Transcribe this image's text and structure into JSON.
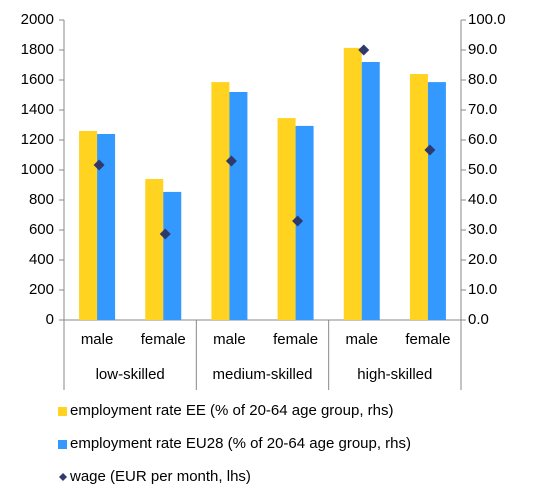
{
  "chart_data": {
    "type": "bar",
    "categories": [
      "male",
      "female",
      "male",
      "female",
      "male",
      "female"
    ],
    "groups": [
      "low-skilled",
      "medium-skilled",
      "high-skilled"
    ],
    "series": [
      {
        "name": "employment rate EE (% of 20-64 age group, rhs)",
        "color": "#ffd320",
        "axis": "y2",
        "values": [
          63,
          47,
          79.3,
          67.3,
          90.7,
          82
        ]
      },
      {
        "name": "employment rate EU28 (% of 20-64 age group, rhs)",
        "color": "#3399ff",
        "axis": "y2",
        "values": [
          62,
          42.7,
          76,
          64.7,
          86,
          79.3
        ]
      },
      {
        "name": "wage (EUR per month, lhs)",
        "color": "#2e3a6e",
        "axis": "y",
        "type": "scatter",
        "values": [
          1033,
          573,
          1060,
          660,
          1800,
          1133
        ]
      }
    ],
    "ylim": [
      0,
      2000
    ],
    "yticks": [
      0,
      200,
      400,
      600,
      800,
      1000,
      1200,
      1400,
      1600,
      1800,
      2000
    ],
    "y2lim": [
      0,
      100
    ],
    "y2ticks": [
      {
        "value": 0,
        "label": "0.0"
      },
      {
        "value": 10,
        "label": "10.0"
      },
      {
        "value": 20,
        "label": "20.0"
      },
      {
        "value": 30,
        "label": "30.0"
      },
      {
        "value": 40,
        "label": "40.0"
      },
      {
        "value": 50,
        "label": "50.0"
      },
      {
        "value": 60,
        "label": "60.0"
      },
      {
        "value": 70,
        "label": "70.0"
      },
      {
        "value": 80,
        "label": "80.0"
      },
      {
        "value": 90,
        "label": "90.0"
      },
      {
        "value": 100,
        "label": "100.0"
      }
    ],
    "grid": false
  }
}
